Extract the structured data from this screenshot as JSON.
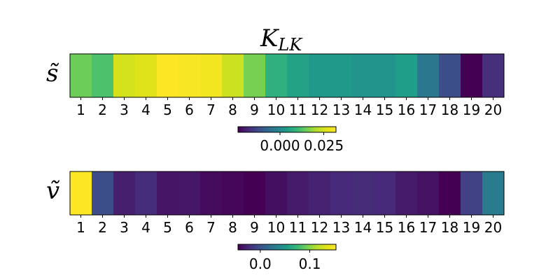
{
  "chart_data": [
    {
      "type": "heatmap",
      "title": "K",
      "title_subscript": "LK",
      "ylabel": "s̃",
      "categories": [
        "1",
        "2",
        "3",
        "4",
        "5",
        "6",
        "7",
        "8",
        "9",
        "10",
        "11",
        "12",
        "13",
        "14",
        "15",
        "16",
        "17",
        "18",
        "19",
        "20"
      ],
      "values": [
        0.015,
        0.012,
        0.025,
        0.027,
        0.032,
        0.031,
        0.03,
        0.024,
        0.016,
        0.008,
        0.005,
        0.003,
        0.003,
        0.002,
        0.002,
        0.004,
        -0.004,
        -0.012,
        -0.024,
        -0.017
      ],
      "colorbar": {
        "ticks": [
          0.0,
          0.025
        ],
        "tick_labels": [
          "0.000",
          "0.025"
        ],
        "range": [
          -0.024,
          0.032
        ]
      },
      "colormap": "viridis"
    },
    {
      "type": "heatmap",
      "title": "",
      "ylabel": "ṽ",
      "categories": [
        "1",
        "2",
        "3",
        "4",
        "5",
        "6",
        "7",
        "8",
        "9",
        "10",
        "11",
        "12",
        "13",
        "14",
        "15",
        "16",
        "17",
        "18",
        "19",
        "20"
      ],
      "values": [
        0.153,
        -0.003,
        -0.03,
        -0.022,
        -0.035,
        -0.034,
        -0.04,
        -0.042,
        -0.045,
        -0.038,
        -0.032,
        -0.028,
        -0.024,
        -0.023,
        -0.024,
        -0.032,
        -0.036,
        -0.045,
        -0.01,
        0.03
      ],
      "colorbar": {
        "ticks": [
          0.0,
          0.1
        ],
        "tick_labels": [
          "0.0",
          "0.1"
        ],
        "range": [
          -0.045,
          0.153
        ]
      },
      "colormap": "viridis"
    }
  ]
}
